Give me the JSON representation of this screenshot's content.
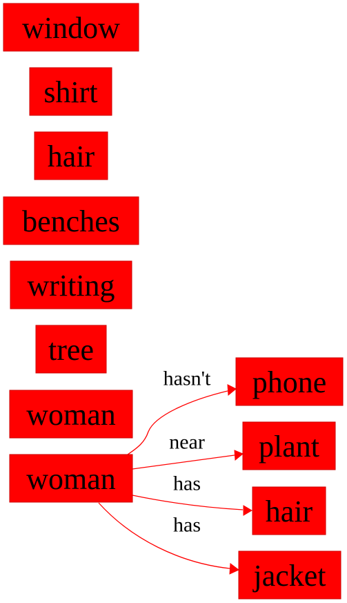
{
  "colors": {
    "node_fill": "#ff0000",
    "edge": "#ff0000",
    "text": "#000000",
    "background": "#ffffff"
  },
  "nodes": [
    {
      "id": "window",
      "label": "window"
    },
    {
      "id": "shirt",
      "label": "shirt"
    },
    {
      "id": "hair1",
      "label": "hair"
    },
    {
      "id": "benches",
      "label": "benches"
    },
    {
      "id": "writing",
      "label": "writing"
    },
    {
      "id": "tree",
      "label": "tree"
    },
    {
      "id": "woman1",
      "label": "woman"
    },
    {
      "id": "woman2",
      "label": "woman"
    },
    {
      "id": "phone",
      "label": "phone"
    },
    {
      "id": "plant",
      "label": "plant"
    },
    {
      "id": "hair2",
      "label": "hair"
    },
    {
      "id": "jacket",
      "label": "jacket"
    }
  ],
  "edges": [
    {
      "from": "woman2",
      "to": "phone",
      "label": "hasn't"
    },
    {
      "from": "woman2",
      "to": "plant",
      "label": "near"
    },
    {
      "from": "woman2",
      "to": "hair2",
      "label": "has"
    },
    {
      "from": "woman2",
      "to": "jacket",
      "label": "has"
    }
  ]
}
